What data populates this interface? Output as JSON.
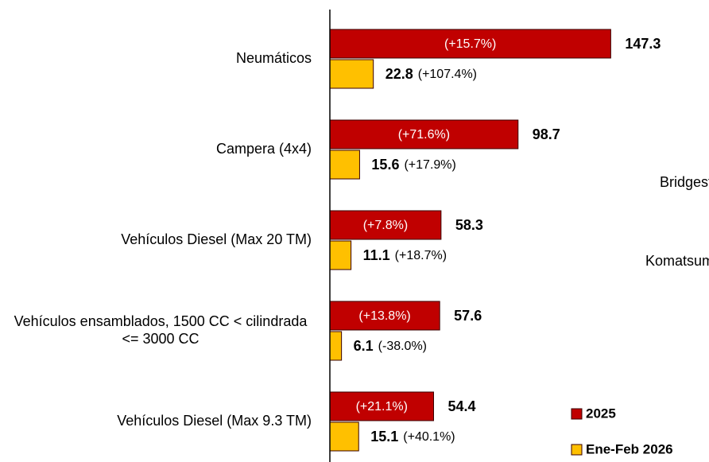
{
  "chart_data": {
    "type": "hbar",
    "categories": [
      "Neumáticos",
      "Campera (4x4)",
      "Vehículos Diesel (Max 20 TM)",
      "Vehículos ensamblados, 1500 CC < cilindrada <= 3000 CC",
      "Vehículos Diesel (Max 9.3 TM)"
    ],
    "series": [
      {
        "name": "2025",
        "color": "#c00000",
        "values": [
          147.3,
          98.7,
          58.3,
          57.6,
          54.4
        ],
        "changes": [
          "(+15.7%)",
          "(+71.6%)",
          "(+7.8%)",
          "(+13.8%)",
          "(+21.1%)"
        ]
      },
      {
        "name": "Ene-Feb 2026",
        "color": "#ffc000",
        "values": [
          22.8,
          15.6,
          11.1,
          6.1,
          15.1
        ],
        "changes": [
          "(+107.4%)",
          "(+17.9%)",
          "(+18.7%)",
          "(-38.0%)",
          "(+40.1%)"
        ]
      }
    ],
    "xlim": [
      0,
      198
    ],
    "annotations": [
      "Bridgest",
      "Komatsumi"
    ]
  }
}
